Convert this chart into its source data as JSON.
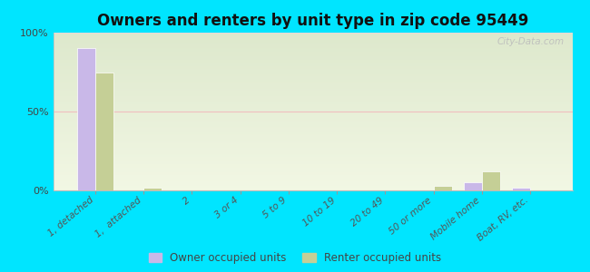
{
  "title": "Owners and renters by unit type in zip code 95449",
  "categories": [
    "1, detached",
    "1,  attached",
    "2",
    "3 or 4",
    "5 to 9",
    "10 to 19",
    "20 to 49",
    "50 or more",
    "Mobile home",
    "Boat, RV, etc."
  ],
  "owner_values": [
    90,
    0,
    0,
    0,
    0,
    0,
    0,
    0,
    5,
    2
  ],
  "renter_values": [
    75,
    2,
    0,
    0,
    0,
    0,
    0,
    3,
    12,
    0
  ],
  "owner_color": "#c9b8e8",
  "renter_color": "#c5cf96",
  "bg_color_top": "#dde8cc",
  "bg_color_bottom": "#eef4dc",
  "outer_bg": "#00e5ff",
  "ylim": [
    0,
    100
  ],
  "yticks": [
    0,
    50,
    100
  ],
  "ytick_labels": [
    "0%",
    "50%",
    "100%"
  ],
  "bar_width": 0.38,
  "legend_owner": "Owner occupied units",
  "legend_renter": "Renter occupied units",
  "watermark": "City-Data.com",
  "title_fontsize": 12,
  "xlabel_fontsize": 8,
  "ylabel_fontsize": 8
}
